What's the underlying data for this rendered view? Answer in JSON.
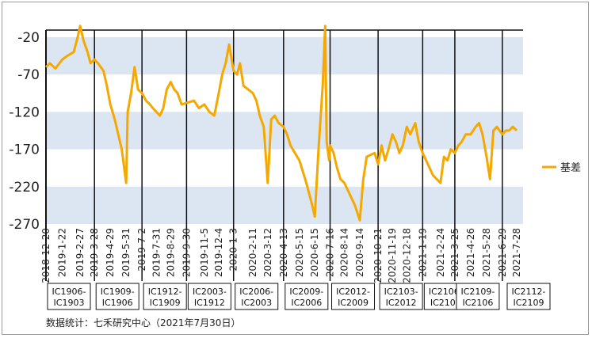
{
  "chart_data": {
    "type": "line",
    "title": "",
    "xlabel": "",
    "ylabel": "",
    "ylim": [
      -270,
      0
    ],
    "yticks": [
      -20,
      -70,
      -120,
      -170,
      -220,
      -270
    ],
    "x_ticks": [
      "2018-12-20",
      "2019-1-22",
      "2019-2-27",
      "2019-3-28",
      "2019-4-29",
      "2019-5-31",
      "2019-7-2",
      "2019-7-31",
      "2019-8-29",
      "2019-9-30",
      "2019-11-5",
      "2019-12-4",
      "2020-1-3",
      "2020-2-11",
      "2020-3-12",
      "2020-4-13",
      "2020-5-15",
      "2020-6-15",
      "2020-7-16",
      "2020-8-14",
      "2020-9-14",
      "2020-10-21",
      "2020-11-19",
      "2020-12-18",
      "2021-1-19",
      "2021-2-24",
      "2021-3-25",
      "2021-4-26",
      "2021-5-28",
      "2021-6-29",
      "2021-7-28"
    ],
    "legend": {
      "position": "right"
    },
    "series": [
      {
        "name": "基差",
        "color": "#F5A800",
        "x": [
          "2018-12-20",
          "2018-12-28",
          "2019-1-8",
          "2019-1-22",
          "2019-2-1",
          "2019-2-14",
          "2019-2-22",
          "2019-2-27",
          "2019-3-6",
          "2019-3-14",
          "2019-3-20",
          "2019-3-28",
          "2019-4-4",
          "2019-4-15",
          "2019-4-22",
          "2019-4-29",
          "2019-5-8",
          "2019-5-15",
          "2019-5-22",
          "2019-5-31",
          "2019-6-3",
          "2019-6-10",
          "2019-6-17",
          "2019-6-24",
          "2019-7-2",
          "2019-7-10",
          "2019-7-18",
          "2019-7-24",
          "2019-7-31",
          "2019-8-7",
          "2019-8-14",
          "2019-8-21",
          "2019-8-29",
          "2019-9-5",
          "2019-9-12",
          "2019-9-20",
          "2019-9-30",
          "2019-10-15",
          "2019-10-25",
          "2019-11-5",
          "2019-11-15",
          "2019-11-25",
          "2019-12-4",
          "2019-12-11",
          "2019-12-18",
          "2019-12-25",
          "2020-1-3",
          "2020-1-10",
          "2020-1-16",
          "2020-1-23",
          "2020-2-11",
          "2020-2-18",
          "2020-2-25",
          "2020-3-4",
          "2020-3-12",
          "2020-3-19",
          "2020-3-26",
          "2020-4-3",
          "2020-4-13",
          "2020-4-20",
          "2020-4-27",
          "2020-5-6",
          "2020-5-15",
          "2020-5-22",
          "2020-5-29",
          "2020-6-8",
          "2020-6-15",
          "2020-6-23",
          "2020-7-1",
          "2020-7-6",
          "2020-7-9",
          "2020-7-14",
          "2020-7-16",
          "2020-7-23",
          "2020-7-30",
          "2020-8-6",
          "2020-8-14",
          "2020-8-21",
          "2020-8-28",
          "2020-9-4",
          "2020-9-14",
          "2020-9-21",
          "2020-9-28",
          "2020-10-14",
          "2020-10-21",
          "2020-10-28",
          "2020-11-4",
          "2020-11-11",
          "2020-11-19",
          "2020-11-26",
          "2020-12-3",
          "2020-12-10",
          "2020-12-18",
          "2020-12-25",
          "2021-1-4",
          "2021-1-11",
          "2021-1-19",
          "2021-1-26",
          "2021-2-2",
          "2021-2-9",
          "2021-2-24",
          "2021-3-3",
          "2021-3-10",
          "2021-3-17",
          "2021-3-25",
          "2021-4-1",
          "2021-4-8",
          "2021-4-16",
          "2021-4-26",
          "2021-5-6",
          "2021-5-13",
          "2021-5-20",
          "2021-5-28",
          "2021-6-4",
          "2021-6-11",
          "2021-6-18",
          "2021-6-29",
          "2021-7-6",
          "2021-7-13",
          "2021-7-20",
          "2021-7-28"
        ],
        "values": [
          -60,
          -55,
          -62,
          -50,
          -45,
          -40,
          -20,
          -5,
          -25,
          -40,
          -55,
          -50,
          -55,
          -65,
          -85,
          -110,
          -130,
          -150,
          -170,
          -215,
          -120,
          -95,
          -60,
          -90,
          -95,
          -105,
          -110,
          -115,
          -120,
          -125,
          -115,
          -90,
          -80,
          -90,
          -95,
          -110,
          -108,
          -105,
          -115,
          -110,
          -120,
          -125,
          -95,
          -70,
          -55,
          -30,
          -65,
          -70,
          -55,
          -85,
          -95,
          -105,
          -125,
          -140,
          -215,
          -130,
          -125,
          -135,
          -140,
          -150,
          -165,
          -175,
          -185,
          -200,
          -215,
          -240,
          -260,
          -165,
          -85,
          -5,
          -160,
          -185,
          -165,
          -175,
          -195,
          -210,
          -215,
          -225,
          -235,
          -245,
          -265,
          -210,
          -180,
          -175,
          -190,
          -165,
          -185,
          -170,
          -150,
          -160,
          -175,
          -165,
          -140,
          -150,
          -135,
          -160,
          -175,
          -185,
          -195,
          -205,
          -215,
          -180,
          -185,
          -170,
          -175,
          -165,
          -160,
          -150,
          -150,
          -140,
          -135,
          -150,
          -180,
          -210,
          -145,
          -140,
          -150,
          -145,
          -145,
          -140,
          -145
        ]
      }
    ]
  },
  "contracts": [
    {
      "line1": "IC1906-",
      "line2": "IC1903"
    },
    {
      "line1": "IC1909-",
      "line2": "IC1906"
    },
    {
      "line1": "IC1912-",
      "line2": "IC1909"
    },
    {
      "line1": "IC2003-",
      "line2": "IC1912"
    },
    {
      "line1": "IC2006-",
      "line2": "IC2003"
    },
    {
      "line1": "IC2009-",
      "line2": "IC2006"
    },
    {
      "line1": "IC2012-",
      "line2": "IC2009"
    },
    {
      "line1": "IC2103-",
      "line2": "IC2012"
    },
    {
      "line1": "IC2106-",
      "line2": "IC2103"
    },
    {
      "line1": "IC2109-",
      "line2": "IC2106"
    },
    {
      "line1": "IC2112-",
      "line2": "IC2109"
    }
  ],
  "source": "数据统计：七禾研究中心（2021年7月30日）"
}
